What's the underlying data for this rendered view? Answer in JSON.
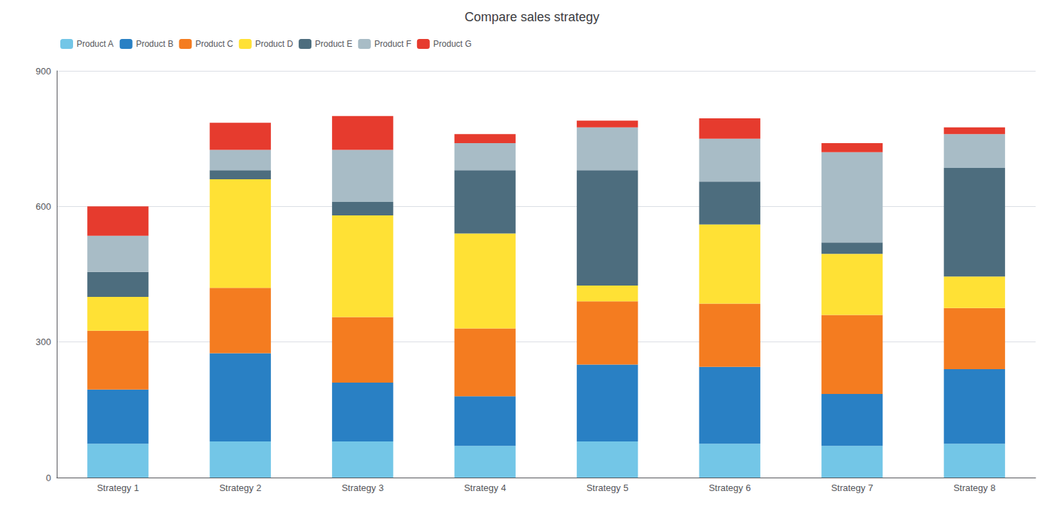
{
  "chart_data": {
    "type": "bar",
    "title": "Compare sales strategy",
    "categories": [
      "Strategy 1",
      "Strategy 2",
      "Strategy 3",
      "Strategy 4",
      "Strategy 5",
      "Strategy 6",
      "Strategy 7",
      "Strategy 8"
    ],
    "series": [
      {
        "name": "Product A",
        "color": "#73C6E7",
        "values": [
          75,
          80,
          80,
          70,
          80,
          75,
          70,
          75
        ]
      },
      {
        "name": "Product B",
        "color": "#2980C4",
        "values": [
          120,
          195,
          130,
          110,
          170,
          170,
          115,
          165
        ]
      },
      {
        "name": "Product C",
        "color": "#F47C20",
        "values": [
          130,
          145,
          145,
          150,
          140,
          140,
          175,
          135
        ]
      },
      {
        "name": "Product D",
        "color": "#FFE135",
        "values": [
          75,
          240,
          225,
          210,
          35,
          175,
          135,
          70
        ]
      },
      {
        "name": "Product E",
        "color": "#4D6D7E",
        "values": [
          55,
          20,
          30,
          140,
          255,
          95,
          25,
          240
        ]
      },
      {
        "name": "Product F",
        "color": "#A8BCC6",
        "values": [
          80,
          45,
          115,
          60,
          95,
          95,
          200,
          75
        ]
      },
      {
        "name": "Product G",
        "color": "#E63B2E",
        "values": [
          65,
          60,
          75,
          20,
          15,
          45,
          20,
          15
        ]
      }
    ],
    "stacked": true,
    "ylim": [
      0,
      900
    ],
    "yticks": [
      0,
      300,
      600,
      900
    ],
    "grid": true,
    "legend": "upper left"
  }
}
